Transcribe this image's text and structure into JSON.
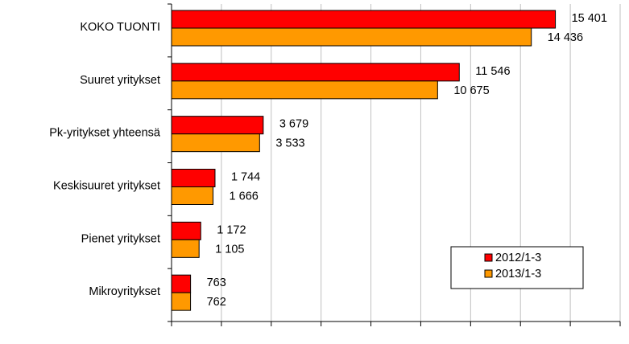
{
  "chart_data": {
    "type": "bar",
    "orientation": "horizontal",
    "title": "",
    "xlabel": "",
    "ylabel": "",
    "xlim": [
      0,
      18000
    ],
    "x_tick_step": 2000,
    "grid": true,
    "legend_position": "bottom-right",
    "categories": [
      "KOKO TUONTI",
      "Suuret yritykset",
      "Pk-yritykset yhteensä",
      "Keskisuuret yritykset",
      "Pienet yritykset",
      "Mikroyritykset"
    ],
    "series": [
      {
        "name": "2012/1-3",
        "color": "#ff0000",
        "values": [
          15401,
          11546,
          3679,
          1744,
          1172,
          763
        ],
        "labels": [
          "15 401",
          "11 546",
          "3 679",
          "1 744",
          "1 172",
          "763"
        ]
      },
      {
        "name": "2013/1-3",
        "color": "#ff9900",
        "values": [
          14436,
          10675,
          3533,
          1666,
          1105,
          762
        ],
        "labels": [
          "14 436",
          "10 675",
          "3 533",
          "1 666",
          "1 105",
          "762"
        ]
      }
    ]
  }
}
